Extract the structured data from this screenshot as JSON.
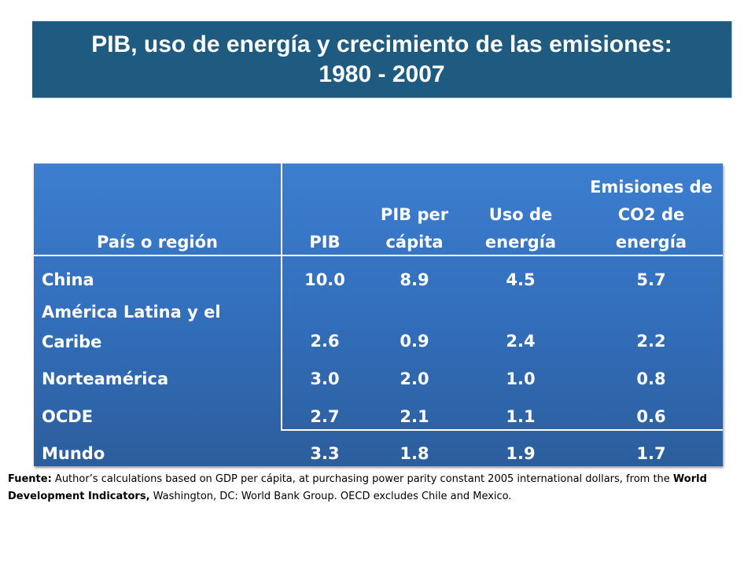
{
  "title": "PIB, uso de energía y crecimiento de las emisiones: 1980 - 2007",
  "table": {
    "headers": [
      "País o región",
      "PIB",
      "PIB per cápita",
      "Uso de energía",
      "Emisiones de CO2 de energía"
    ],
    "rows": [
      {
        "region": "China",
        "pib": "10.0",
        "pib_pc": "8.9",
        "energia": "4.5",
        "co2": "5.7"
      },
      {
        "region": "América Latina y el Caribe",
        "pib": "2.6",
        "pib_pc": "0.9",
        "energia": "2.4",
        "co2": "2.2"
      },
      {
        "region": "Norteamérica",
        "pib": "3.0",
        "pib_pc": "2.0",
        "energia": "1.0",
        "co2": "0.8"
      },
      {
        "region": "OCDE",
        "pib": "2.7",
        "pib_pc": "2.1",
        "energia": "1.1",
        "co2": "0.6"
      },
      {
        "region": "Mundo",
        "pib": "3.3",
        "pib_pc": "1.8",
        "energia": "1.9",
        "co2": "1.7"
      }
    ]
  },
  "source": {
    "label": "Fuente:",
    "text1": " Author’s calculations based on GDP per cápita, at purchasing power parity constant 2005 international dollars, from the ",
    "bold2": "World Development Indicators,",
    "text2": " Washington, DC: World Bank Group. OECD excludes Chile and Mexico."
  }
}
